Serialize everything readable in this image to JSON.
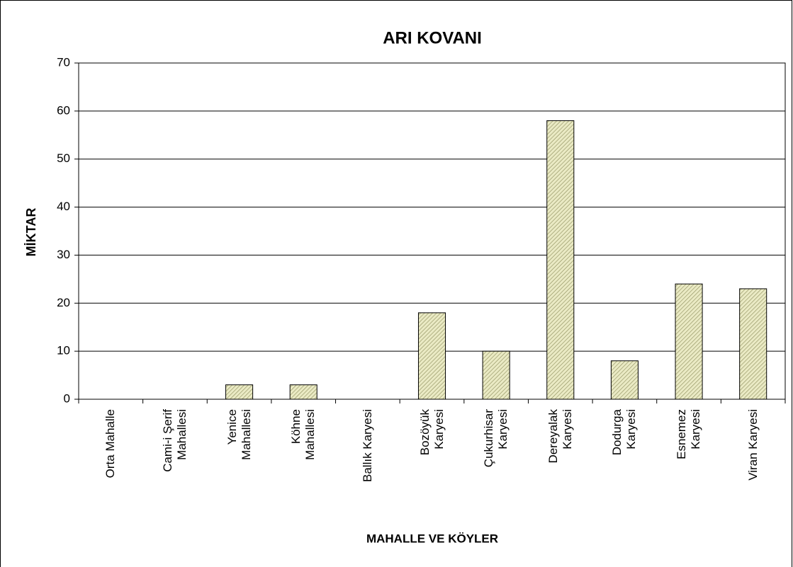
{
  "chart_data": {
    "type": "bar",
    "title": "ARI KOVANI",
    "x_label": "MAHALLE VE KÖYLER",
    "y_label": "MİKTAR",
    "categories": [
      "Orta Mahalle",
      "Cami-i Şerif Mahallesi",
      "Yenice Mahallesi",
      "Köhne Mahallesi",
      "Ballık Karyesi",
      "Bozöyük Karyesi",
      "Çukurhisar Karyesi",
      "Dereyalak Karyesi",
      "Dodurga Karyesi",
      "Esnemez Karyesi",
      "Viran Karyesi"
    ],
    "values": [
      0,
      0,
      3,
      3,
      0,
      18,
      10,
      58,
      8,
      24,
      23
    ],
    "color": "#eaeac4",
    "ylim": [
      0,
      70
    ],
    "yticks": [
      0,
      10,
      20,
      30,
      40,
      50,
      60,
      70
    ],
    "grid": true
  }
}
